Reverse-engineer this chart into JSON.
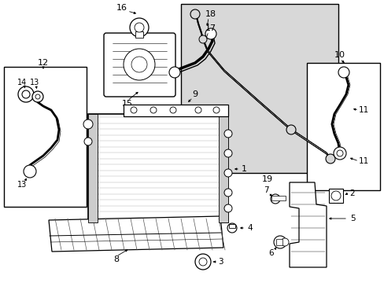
{
  "bg_color": "#ffffff",
  "box_fill": "#d8d8d8",
  "line_color": "#000000",
  "text_color": "#000000",
  "figsize": [
    4.89,
    3.6
  ],
  "dpi": 100,
  "xlim": [
    0,
    489
  ],
  "ylim": [
    0,
    360
  ]
}
